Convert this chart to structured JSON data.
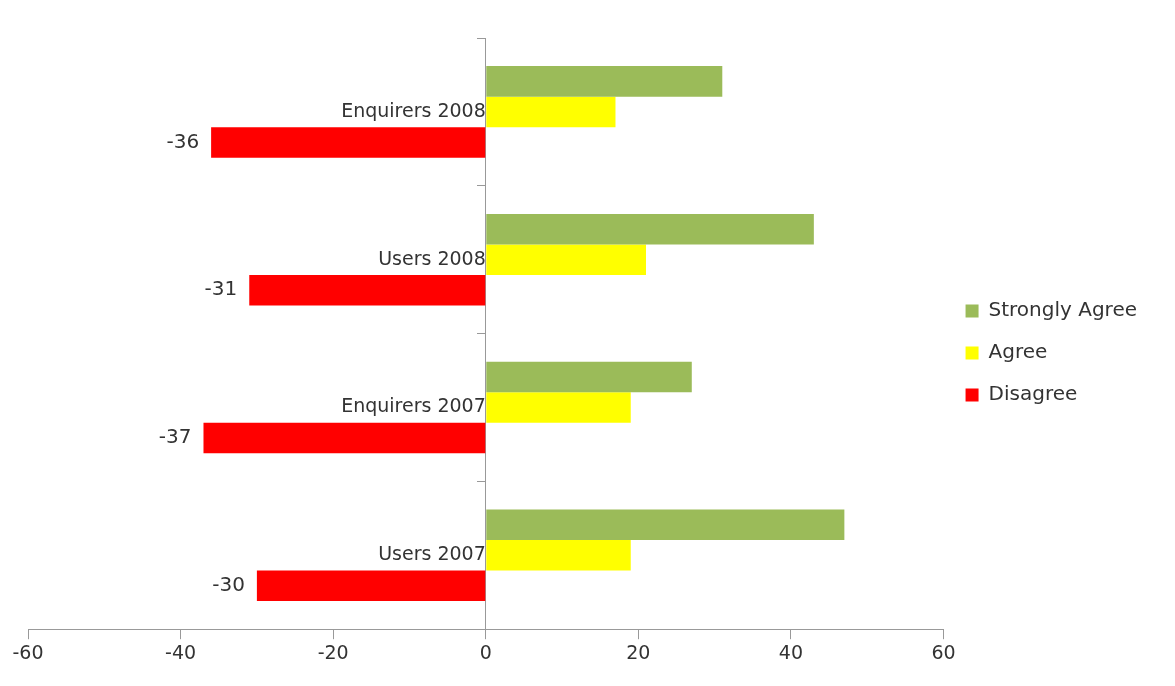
{
  "chart_data": {
    "type": "bar",
    "orientation": "horizontal",
    "categories": [
      "Enquirers 2008",
      "Users 2008",
      "Enquirers 2007",
      "Users 2007"
    ],
    "series": [
      {
        "name": "Strongly Agree",
        "color": "#9bbb59",
        "values": [
          31,
          43,
          27,
          47
        ]
      },
      {
        "name": "Agree",
        "color": "#ffff00",
        "values": [
          17,
          21,
          19,
          19
        ]
      },
      {
        "name": "Disagree",
        "color": "#ff0000",
        "values": [
          -36,
          -31,
          -37,
          -30
        ],
        "value_labels": [
          "-36",
          "-31",
          "-37",
          "-30"
        ]
      }
    ],
    "xlim": [
      -60,
      60
    ],
    "xticks": [
      -60,
      -40,
      -20,
      0,
      20,
      40,
      60
    ],
    "grid": false,
    "legend": "right"
  }
}
